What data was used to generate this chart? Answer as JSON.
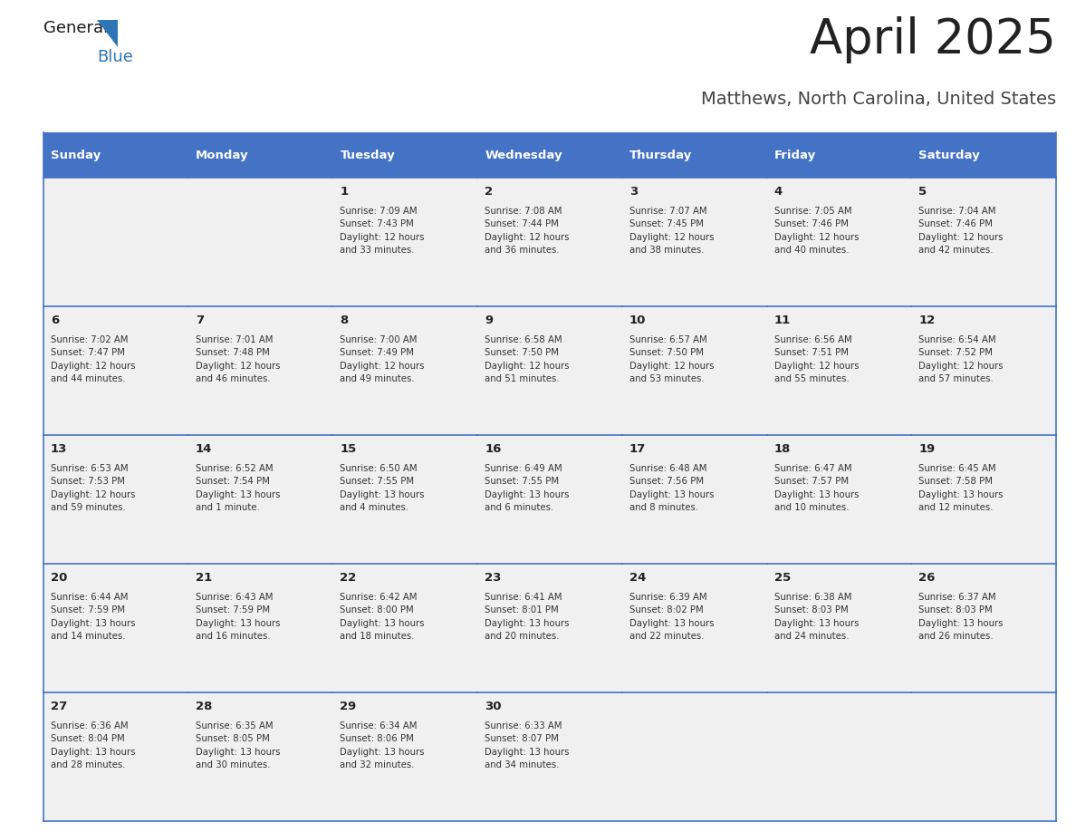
{
  "title": "April 2025",
  "subtitle": "Matthews, North Carolina, United States",
  "header_bg": "#4472C4",
  "header_text_color": "#FFFFFF",
  "days_of_week": [
    "Sunday",
    "Monday",
    "Tuesday",
    "Wednesday",
    "Thursday",
    "Friday",
    "Saturday"
  ],
  "weeks": [
    [
      {
        "day": "",
        "info": ""
      },
      {
        "day": "",
        "info": ""
      },
      {
        "day": "1",
        "info": "Sunrise: 7:09 AM\nSunset: 7:43 PM\nDaylight: 12 hours\nand 33 minutes."
      },
      {
        "day": "2",
        "info": "Sunrise: 7:08 AM\nSunset: 7:44 PM\nDaylight: 12 hours\nand 36 minutes."
      },
      {
        "day": "3",
        "info": "Sunrise: 7:07 AM\nSunset: 7:45 PM\nDaylight: 12 hours\nand 38 minutes."
      },
      {
        "day": "4",
        "info": "Sunrise: 7:05 AM\nSunset: 7:46 PM\nDaylight: 12 hours\nand 40 minutes."
      },
      {
        "day": "5",
        "info": "Sunrise: 7:04 AM\nSunset: 7:46 PM\nDaylight: 12 hours\nand 42 minutes."
      }
    ],
    [
      {
        "day": "6",
        "info": "Sunrise: 7:02 AM\nSunset: 7:47 PM\nDaylight: 12 hours\nand 44 minutes."
      },
      {
        "day": "7",
        "info": "Sunrise: 7:01 AM\nSunset: 7:48 PM\nDaylight: 12 hours\nand 46 minutes."
      },
      {
        "day": "8",
        "info": "Sunrise: 7:00 AM\nSunset: 7:49 PM\nDaylight: 12 hours\nand 49 minutes."
      },
      {
        "day": "9",
        "info": "Sunrise: 6:58 AM\nSunset: 7:50 PM\nDaylight: 12 hours\nand 51 minutes."
      },
      {
        "day": "10",
        "info": "Sunrise: 6:57 AM\nSunset: 7:50 PM\nDaylight: 12 hours\nand 53 minutes."
      },
      {
        "day": "11",
        "info": "Sunrise: 6:56 AM\nSunset: 7:51 PM\nDaylight: 12 hours\nand 55 minutes."
      },
      {
        "day": "12",
        "info": "Sunrise: 6:54 AM\nSunset: 7:52 PM\nDaylight: 12 hours\nand 57 minutes."
      }
    ],
    [
      {
        "day": "13",
        "info": "Sunrise: 6:53 AM\nSunset: 7:53 PM\nDaylight: 12 hours\nand 59 minutes."
      },
      {
        "day": "14",
        "info": "Sunrise: 6:52 AM\nSunset: 7:54 PM\nDaylight: 13 hours\nand 1 minute."
      },
      {
        "day": "15",
        "info": "Sunrise: 6:50 AM\nSunset: 7:55 PM\nDaylight: 13 hours\nand 4 minutes."
      },
      {
        "day": "16",
        "info": "Sunrise: 6:49 AM\nSunset: 7:55 PM\nDaylight: 13 hours\nand 6 minutes."
      },
      {
        "day": "17",
        "info": "Sunrise: 6:48 AM\nSunset: 7:56 PM\nDaylight: 13 hours\nand 8 minutes."
      },
      {
        "day": "18",
        "info": "Sunrise: 6:47 AM\nSunset: 7:57 PM\nDaylight: 13 hours\nand 10 minutes."
      },
      {
        "day": "19",
        "info": "Sunrise: 6:45 AM\nSunset: 7:58 PM\nDaylight: 13 hours\nand 12 minutes."
      }
    ],
    [
      {
        "day": "20",
        "info": "Sunrise: 6:44 AM\nSunset: 7:59 PM\nDaylight: 13 hours\nand 14 minutes."
      },
      {
        "day": "21",
        "info": "Sunrise: 6:43 AM\nSunset: 7:59 PM\nDaylight: 13 hours\nand 16 minutes."
      },
      {
        "day": "22",
        "info": "Sunrise: 6:42 AM\nSunset: 8:00 PM\nDaylight: 13 hours\nand 18 minutes."
      },
      {
        "day": "23",
        "info": "Sunrise: 6:41 AM\nSunset: 8:01 PM\nDaylight: 13 hours\nand 20 minutes."
      },
      {
        "day": "24",
        "info": "Sunrise: 6:39 AM\nSunset: 8:02 PM\nDaylight: 13 hours\nand 22 minutes."
      },
      {
        "day": "25",
        "info": "Sunrise: 6:38 AM\nSunset: 8:03 PM\nDaylight: 13 hours\nand 24 minutes."
      },
      {
        "day": "26",
        "info": "Sunrise: 6:37 AM\nSunset: 8:03 PM\nDaylight: 13 hours\nand 26 minutes."
      }
    ],
    [
      {
        "day": "27",
        "info": "Sunrise: 6:36 AM\nSunset: 8:04 PM\nDaylight: 13 hours\nand 28 minutes."
      },
      {
        "day": "28",
        "info": "Sunrise: 6:35 AM\nSunset: 8:05 PM\nDaylight: 13 hours\nand 30 minutes."
      },
      {
        "day": "29",
        "info": "Sunrise: 6:34 AM\nSunset: 8:06 PM\nDaylight: 13 hours\nand 32 minutes."
      },
      {
        "day": "30",
        "info": "Sunrise: 6:33 AM\nSunset: 8:07 PM\nDaylight: 13 hours\nand 34 minutes."
      },
      {
        "day": "",
        "info": ""
      },
      {
        "day": "",
        "info": ""
      },
      {
        "day": "",
        "info": ""
      }
    ]
  ],
  "cell_bg_color": "#F0F0F0",
  "cell_border_color": "#4472C4",
  "day_num_color": "#222222",
  "info_text_color": "#333333",
  "title_color": "#222222",
  "subtitle_color": "#444444",
  "logo_general_color": "#1a1a1a",
  "logo_blue_color": "#2E75B6",
  "fig_width": 11.88,
  "fig_height": 9.18,
  "dpi": 100
}
